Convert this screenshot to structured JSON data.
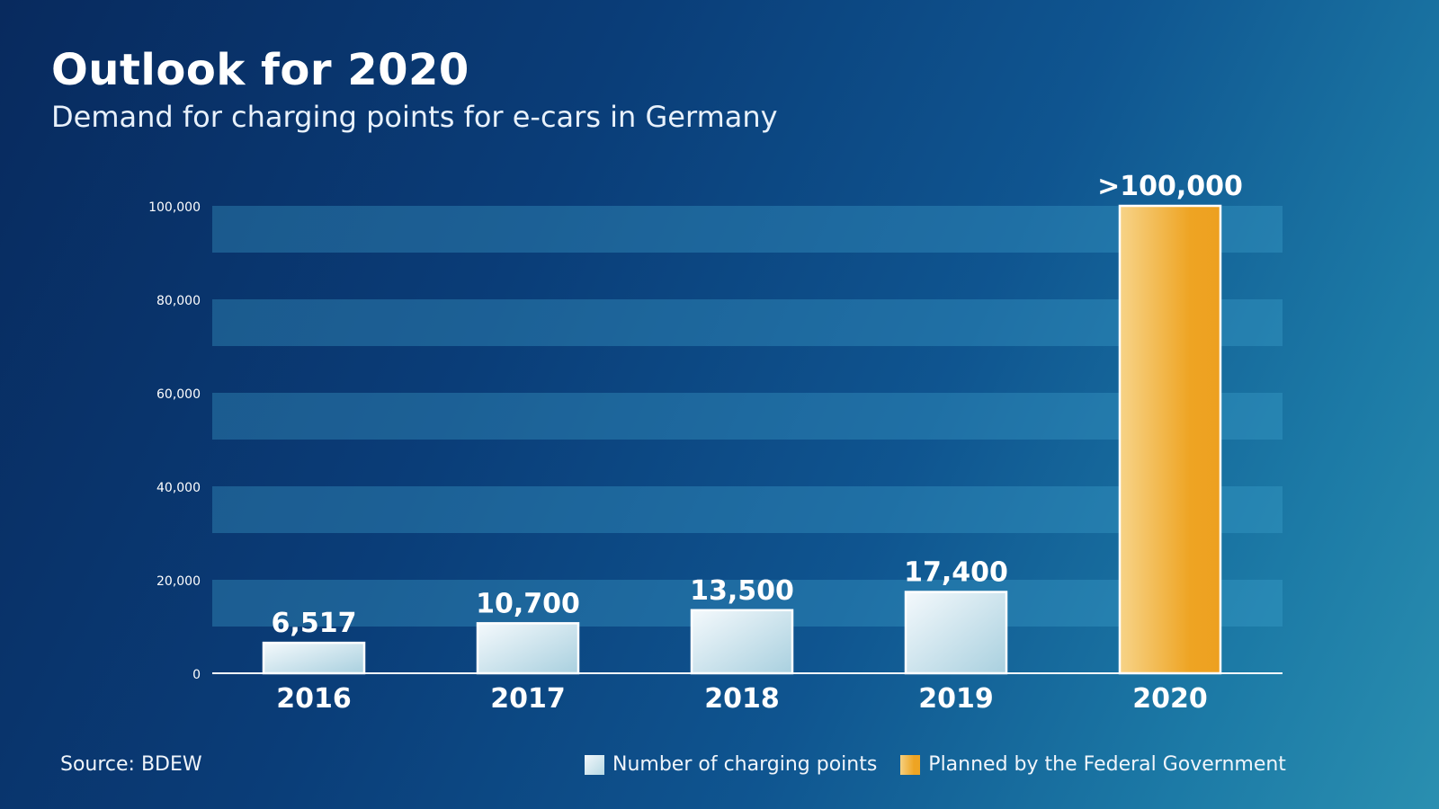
{
  "header": {
    "title": "Outlook for 2020",
    "subtitle": "Demand for charging points for e-cars in Germany"
  },
  "footer": {
    "source": "Source: BDEW"
  },
  "legend": [
    {
      "label": "Number of charging points",
      "color": "#cfe5ee"
    },
    {
      "label": "Planned by the Federal Government",
      "color": "#eea423"
    }
  ],
  "chart_data": {
    "type": "bar",
    "title": "Outlook for 2020",
    "subtitle": "Demand for charging points for e-cars in Germany",
    "categories": [
      "2016",
      "2017",
      "2018",
      "2019",
      "2020"
    ],
    "series": [
      {
        "name": "Number of charging points",
        "values": [
          6517,
          10700,
          13500,
          17400,
          null
        ]
      },
      {
        "name": "Planned by the Federal Government",
        "values": [
          null,
          null,
          null,
          null,
          100000
        ]
      }
    ],
    "data_labels": [
      "6,517",
      "10,700",
      "13,500",
      "17,400",
      ">100,000"
    ],
    "ylim": [
      0,
      100000
    ],
    "yticks": [
      0,
      20000,
      40000,
      60000,
      80000,
      100000
    ],
    "ytick_labels": [
      "0",
      "20,000",
      "40,000",
      "60,000",
      "80,000",
      "100,000"
    ],
    "xlabel": "",
    "ylabel": "",
    "grid": "alternating horizontal bands",
    "legend_position": "bottom-right",
    "colors": {
      "actual": "#cfe5ee",
      "planned": "#eea423",
      "band": "#2a8dbb"
    }
  }
}
